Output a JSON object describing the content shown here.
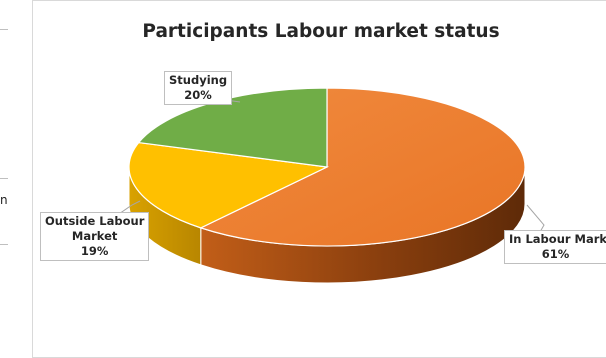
{
  "side_fragment": "n",
  "chart_data": {
    "type": "pie",
    "title": "Participants Labour market status",
    "categories": [
      "In Labour Market",
      "Outside Labour Market",
      "Studying"
    ],
    "values": [
      61,
      19,
      20
    ],
    "unit": "%",
    "colors": [
      "#ED7D31",
      "#FFC000",
      "#70AD47"
    ],
    "data_labels": [
      {
        "category": "Studying",
        "value": "20%"
      },
      {
        "category": "Outside Labour Market",
        "value": "19%"
      },
      {
        "category": "In Labour Market",
        "value": "61%"
      }
    ]
  }
}
